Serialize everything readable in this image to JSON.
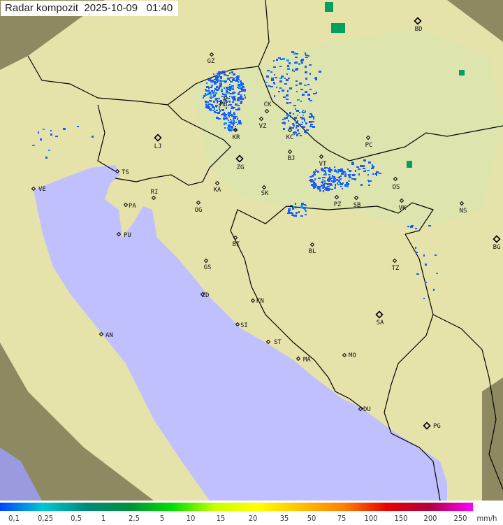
{
  "title": {
    "product": "Radar kompozit",
    "date": "2025-10-09",
    "time": "01:40"
  },
  "map": {
    "colors": {
      "sea": "#c0c0ff",
      "land": "#e6e3aa",
      "lowland": "#d6e6b0",
      "outside_coverage": "#8d8a62",
      "border": "#000000",
      "precip_light": "#1a5cff",
      "precip_moderate": "#00a060"
    },
    "cities": [
      {
        "label": "GZ",
        "capital": false
      },
      {
        "label": "MB",
        "capital": false
      },
      {
        "label": "CK",
        "capital": false
      },
      {
        "label": "VZ",
        "capital": false
      },
      {
        "label": "KR",
        "capital": false
      },
      {
        "label": "KC",
        "capital": false
      },
      {
        "label": "PC",
        "capital": false
      },
      {
        "label": "BJ",
        "capital": false
      },
      {
        "label": "ZG",
        "capital": true
      },
      {
        "label": "VT",
        "capital": false
      },
      {
        "label": "KA",
        "capital": false
      },
      {
        "label": "SK",
        "capital": false
      },
      {
        "label": "PZ",
        "capital": false
      },
      {
        "label": "SB",
        "capital": false
      },
      {
        "label": "OG",
        "capital": false
      },
      {
        "label": "LJ",
        "capital": true
      },
      {
        "label": "TS",
        "capital": false
      },
      {
        "label": "VE",
        "capital": false
      },
      {
        "label": "RI",
        "capital": false
      },
      {
        "label": "PA",
        "capital": false
      },
      {
        "label": "PU",
        "capital": false
      },
      {
        "label": "BD",
        "capital": true
      },
      {
        "label": "OS",
        "capital": false
      },
      {
        "label": "VK",
        "capital": false
      },
      {
        "label": "NS",
        "capital": false
      },
      {
        "label": "BG",
        "capital": true
      },
      {
        "label": "BI",
        "capital": false
      },
      {
        "label": "BL",
        "capital": false
      },
      {
        "label": "TZ",
        "capital": false
      },
      {
        "label": "GS",
        "capital": false
      },
      {
        "label": "ZD",
        "capital": false
      },
      {
        "label": "KN",
        "capital": false
      },
      {
        "label": "SA",
        "capital": true
      },
      {
        "label": "SI",
        "capital": false
      },
      {
        "label": "AN",
        "capital": false
      },
      {
        "label": "ST",
        "capital": false
      },
      {
        "label": "MA",
        "capital": false
      },
      {
        "label": "MO",
        "capital": false
      },
      {
        "label": "DU",
        "capital": false
      },
      {
        "label": "PG",
        "capital": true
      }
    ]
  },
  "legend": {
    "unit": "mm/h",
    "labels": [
      "0,1",
      "0,25",
      "0,5",
      "1",
      "2,5",
      "5",
      "10",
      "15",
      "20",
      "35",
      "50",
      "75",
      "100",
      "150",
      "200",
      "250"
    ],
    "colors": [
      "#0044ff",
      "#00c8d0",
      "#008a7a",
      "#00903c",
      "#00e000",
      "#c8ff00",
      "#ffff00",
      "#ffc000",
      "#ff8000",
      "#e80000",
      "#b00040",
      "#ff00ff"
    ]
  }
}
